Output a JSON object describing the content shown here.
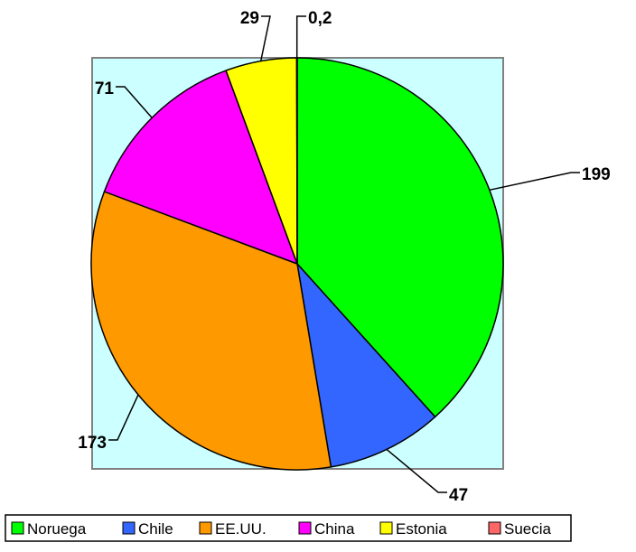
{
  "chart_data": {
    "type": "pie",
    "title": "",
    "slices": [
      {
        "name": "Noruega",
        "value": 199,
        "label": "199",
        "color": "#00ff00"
      },
      {
        "name": "Chile",
        "value": 47,
        "label": "47",
        "color": "#3366ff"
      },
      {
        "name": "EE.UU.",
        "value": 173,
        "label": "173",
        "color": "#ff9900"
      },
      {
        "name": "China",
        "value": 71,
        "label": "71",
        "color": "#ff00ff"
      },
      {
        "name": "Estonia",
        "value": 29,
        "label": "29",
        "color": "#ffff00"
      },
      {
        "name": "Suecia",
        "value": 0.2,
        "label": "0,2",
        "color": "#ff6666"
      }
    ],
    "plot_background": "#ccffff",
    "legend_position": "bottom"
  }
}
